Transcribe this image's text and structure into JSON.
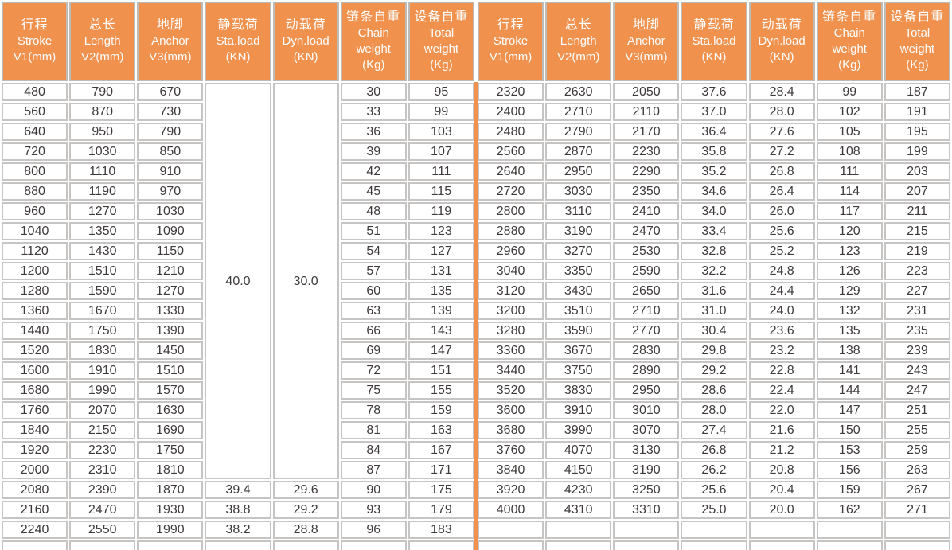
{
  "colors": {
    "header_bg": "#f0924e",
    "header_text": "#fdfdfd",
    "cell_border": "#c7c5c4",
    "data_text": "#3e3a39",
    "middle_divider": "#f0924e",
    "background": "#ffffff"
  },
  "table": {
    "columns": [
      {
        "key": "stroke",
        "lines": [
          "行程",
          "Stroke",
          "V1(mm)"
        ]
      },
      {
        "key": "length",
        "lines": [
          "总长",
          "Length",
          "V2(mm)"
        ]
      },
      {
        "key": "anchor",
        "lines": [
          "地脚",
          "Anchor",
          "V3(mm)"
        ]
      },
      {
        "key": "sta-load",
        "lines": [
          "静载荷",
          "Sta.load",
          "(KN)"
        ]
      },
      {
        "key": "dyn-load",
        "lines": [
          "动载荷",
          "Dyn.load",
          "(KN)"
        ]
      },
      {
        "key": "chain-weight",
        "lines": [
          "链条自重",
          "Chain",
          "weight",
          "(Kg)"
        ]
      },
      {
        "key": "total-weight",
        "lines": [
          "设备自重",
          "Total",
          "weight",
          "(Kg)"
        ]
      }
    ],
    "left_merged": {
      "row": 0,
      "cols": [
        3,
        4
      ],
      "span": 20,
      "values": [
        "40.0",
        "30.0"
      ]
    },
    "left_rows": [
      [
        480,
        790,
        670,
        null,
        null,
        30,
        95
      ],
      [
        560,
        870,
        730,
        null,
        null,
        33,
        99
      ],
      [
        640,
        950,
        790,
        null,
        null,
        36,
        103
      ],
      [
        720,
        1030,
        850,
        null,
        null,
        39,
        107
      ],
      [
        800,
        1110,
        910,
        null,
        null,
        42,
        111
      ],
      [
        880,
        1190,
        970,
        null,
        null,
        45,
        115
      ],
      [
        960,
        1270,
        1030,
        null,
        null,
        48,
        119
      ],
      [
        1040,
        1350,
        1090,
        null,
        null,
        51,
        123
      ],
      [
        1120,
        1430,
        1150,
        null,
        null,
        54,
        127
      ],
      [
        1200,
        1510,
        1210,
        null,
        null,
        57,
        131
      ],
      [
        1280,
        1590,
        1270,
        null,
        null,
        60,
        135
      ],
      [
        1360,
        1670,
        1330,
        null,
        null,
        63,
        139
      ],
      [
        1440,
        1750,
        1390,
        null,
        null,
        66,
        143
      ],
      [
        1520,
        1830,
        1450,
        null,
        null,
        69,
        147
      ],
      [
        1600,
        1910,
        1510,
        null,
        null,
        72,
        151
      ],
      [
        1680,
        1990,
        1570,
        null,
        null,
        75,
        155
      ],
      [
        1760,
        2070,
        1630,
        null,
        null,
        78,
        159
      ],
      [
        1840,
        2150,
        1690,
        null,
        null,
        81,
        163
      ],
      [
        1920,
        2230,
        1750,
        null,
        null,
        84,
        167
      ],
      [
        2000,
        2310,
        1810,
        null,
        null,
        87,
        171
      ],
      [
        2080,
        2390,
        1870,
        "39.4",
        "29.6",
        90,
        175
      ],
      [
        2160,
        2470,
        1930,
        "38.8",
        "29.2",
        93,
        179
      ],
      [
        2240,
        2550,
        1990,
        "38.2",
        "28.8",
        96,
        183
      ]
    ],
    "right_rows": [
      [
        2320,
        2630,
        2050,
        "37.6",
        "28.4",
        99,
        187
      ],
      [
        2400,
        2710,
        2110,
        "37.0",
        "28.0",
        102,
        191
      ],
      [
        2480,
        2790,
        2170,
        "36.4",
        "27.6",
        105,
        195
      ],
      [
        2560,
        2870,
        2230,
        "35.8",
        "27.2",
        108,
        199
      ],
      [
        2640,
        2950,
        2290,
        "35.2",
        "26.8",
        111,
        203
      ],
      [
        2720,
        3030,
        2350,
        "34.6",
        "26.4",
        114,
        207
      ],
      [
        2800,
        3110,
        2410,
        "34.0",
        "26.0",
        117,
        211
      ],
      [
        2880,
        3190,
        2470,
        "33.4",
        "25.6",
        120,
        215
      ],
      [
        2960,
        3270,
        2530,
        "32.8",
        "25.2",
        123,
        219
      ],
      [
        3040,
        3350,
        2590,
        "32.2",
        "24.8",
        126,
        223
      ],
      [
        3120,
        3430,
        2650,
        "31.6",
        "24.4",
        129,
        227
      ],
      [
        3200,
        3510,
        2710,
        "31.0",
        "24.0",
        132,
        231
      ],
      [
        3280,
        3590,
        2770,
        "30.4",
        "23.6",
        135,
        235
      ],
      [
        3360,
        3670,
        2830,
        "29.8",
        "23.2",
        138,
        239
      ],
      [
        3440,
        3750,
        2890,
        "29.2",
        "22.8",
        141,
        243
      ],
      [
        3520,
        3830,
        2950,
        "28.6",
        "22.4",
        144,
        247
      ],
      [
        3600,
        3910,
        3010,
        "28.0",
        "22.0",
        147,
        251
      ],
      [
        3680,
        3990,
        3070,
        "27.4",
        "21.6",
        150,
        255
      ],
      [
        3760,
        4070,
        3130,
        "26.8",
        "21.2",
        153,
        259
      ],
      [
        3840,
        4150,
        3190,
        "26.2",
        "20.8",
        156,
        263
      ],
      [
        3920,
        4230,
        3250,
        "25.6",
        "20.4",
        159,
        267
      ],
      [
        4000,
        4310,
        3310,
        "25.0",
        "20.0",
        162,
        271
      ],
      [
        "",
        "",
        "",
        "",
        "",
        "",
        ""
      ]
    ],
    "partial_row": [
      "",
      "",
      "",
      "",
      "",
      "",
      ""
    ]
  }
}
